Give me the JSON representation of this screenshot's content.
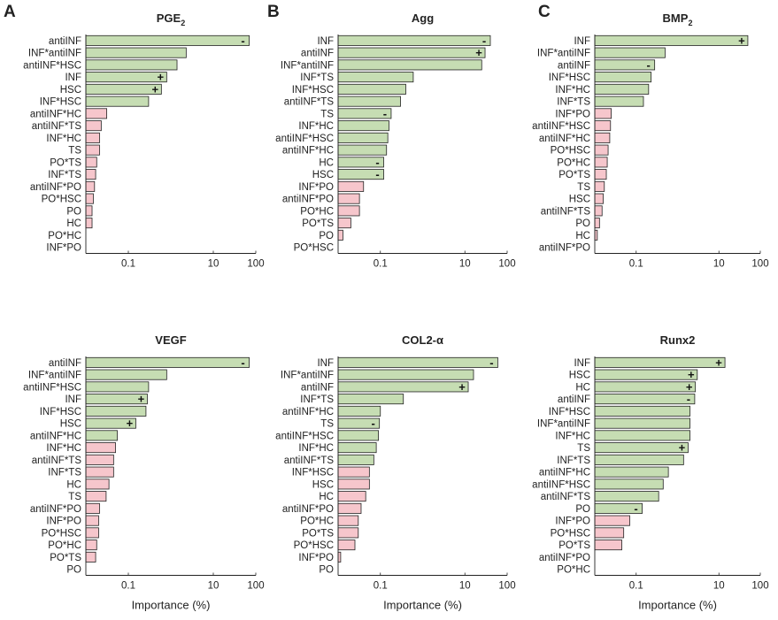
{
  "figure": {
    "panel_letters": [
      "A",
      "B",
      "C"
    ],
    "xlabel": "Importance (%)",
    "colors": {
      "positive": "#c6ddb3",
      "negative": "#f6c6cc",
      "edge": "#222222",
      "text": "#222222"
    }
  },
  "chart_data": [
    {
      "type": "bar",
      "orientation": "horizontal",
      "xscale": "log",
      "title": "PGE",
      "title_sub": "2",
      "xticks": [
        "0.1",
        "10",
        "100"
      ],
      "xlabel": "",
      "categories": [
        "antiINF",
        "INF*antiINF",
        "antiINF*HSC",
        "INF",
        "HSC",
        "INF*HSC",
        "antiINF*HC",
        "antiINF*TS",
        "INF*HC",
        "TS",
        "PO*TS",
        "INF*TS",
        "antiINF*PO",
        "PO*HSC",
        "PO",
        "HC",
        "PO*HC",
        "INF*PO"
      ],
      "values": [
        70,
        2.3,
        1.4,
        0.8,
        0.6,
        0.3,
        0.031,
        0.023,
        0.021,
        0.021,
        0.018,
        0.017,
        0.016,
        0.015,
        0.014,
        0.014,
        0.0101,
        0.01
      ],
      "effect": [
        "pos",
        "pos",
        "pos",
        "pos",
        "pos",
        "pos",
        "neg",
        "neg",
        "neg",
        "neg",
        "neg",
        "neg",
        "neg",
        "neg",
        "neg",
        "neg",
        "neg",
        "neg"
      ],
      "signs": [
        "-",
        "",
        "",
        "+",
        "+",
        "",
        "",
        "",
        "",
        "",
        "",
        "",
        "",
        "",
        "",
        "",
        "",
        ""
      ]
    },
    {
      "type": "bar",
      "orientation": "horizontal",
      "xscale": "log",
      "title": "Agg",
      "title_sub": "",
      "xticks": [
        "0.1",
        "10",
        "100"
      ],
      "xlabel": "",
      "categories": [
        "INF",
        "antiINF",
        "INF*antiINF",
        "INF*TS",
        "INF*HSC",
        "antiINF*TS",
        "TS",
        "INF*HC",
        "antiINF*HSC",
        "antiINF*HC",
        "HC",
        "HSC",
        "INF*PO",
        "antiINF*PO",
        "PO*HC",
        "PO*TS",
        "PO",
        "PO*HSC"
      ],
      "values": [
        40,
        30,
        25,
        0.6,
        0.4,
        0.3,
        0.18,
        0.16,
        0.15,
        0.14,
        0.12,
        0.12,
        0.04,
        0.032,
        0.032,
        0.02,
        0.013,
        0.01
      ],
      "effect": [
        "pos",
        "pos",
        "pos",
        "pos",
        "pos",
        "pos",
        "pos",
        "pos",
        "pos",
        "pos",
        "pos",
        "pos",
        "neg",
        "neg",
        "neg",
        "neg",
        "neg",
        "neg"
      ],
      "signs": [
        "-",
        "+",
        "",
        "",
        "",
        "",
        "-",
        "",
        "",
        "",
        "-",
        "-",
        "",
        "",
        "",
        "",
        "",
        ""
      ]
    },
    {
      "type": "bar",
      "orientation": "horizontal",
      "xscale": "log",
      "title": "BMP",
      "title_sub": "2",
      "xticks": [
        "0.1",
        "10",
        "100"
      ],
      "xlabel": "",
      "categories": [
        "INF",
        "INF*antiINF",
        "antiINF",
        "INF*HSC",
        "INF*HC",
        "INF*TS",
        "INF*PO",
        "antiINF*HSC",
        "antiINF*HC",
        "PO*HSC",
        "PO*HC",
        "PO*TS",
        "TS",
        "HSC",
        "antiINF*TS",
        "PO",
        "HC",
        "antiINF*PO"
      ],
      "values": [
        50,
        0.5,
        0.28,
        0.23,
        0.2,
        0.15,
        0.025,
        0.024,
        0.023,
        0.021,
        0.02,
        0.019,
        0.017,
        0.016,
        0.015,
        0.013,
        0.0115,
        0.01
      ],
      "effect": [
        "pos",
        "pos",
        "pos",
        "pos",
        "pos",
        "pos",
        "neg",
        "neg",
        "neg",
        "neg",
        "neg",
        "neg",
        "neg",
        "neg",
        "neg",
        "neg",
        "neg",
        "neg"
      ],
      "signs": [
        "+",
        "",
        "-",
        "",
        "",
        "",
        "",
        "",
        "",
        "",
        "",
        "",
        "",
        "",
        "",
        "",
        "",
        ""
      ]
    },
    {
      "type": "bar",
      "orientation": "horizontal",
      "xscale": "log",
      "title": "VEGF",
      "title_sub": "",
      "xticks": [
        "0.1",
        "10",
        "100"
      ],
      "xlabel": "Importance (%)",
      "categories": [
        "antiINF",
        "INF*antiINF",
        "antiINF*HSC",
        "INF",
        "INF*HSC",
        "HSC",
        "antiINF*HC",
        "INF*HC",
        "antiINF*TS",
        "INF*TS",
        "HC",
        "TS",
        "antiINF*PO",
        "INF*PO",
        "PO*HSC",
        "PO*HC",
        "PO*TS",
        "PO"
      ],
      "values": [
        70,
        0.8,
        0.3,
        0.28,
        0.26,
        0.15,
        0.055,
        0.05,
        0.045,
        0.045,
        0.035,
        0.03,
        0.021,
        0.02,
        0.02,
        0.018,
        0.017,
        0.01
      ],
      "effect": [
        "pos",
        "pos",
        "pos",
        "pos",
        "pos",
        "pos",
        "pos",
        "neg",
        "neg",
        "neg",
        "neg",
        "neg",
        "neg",
        "neg",
        "neg",
        "neg",
        "neg",
        "neg"
      ],
      "signs": [
        "-",
        "",
        "",
        "+",
        "",
        "+",
        "",
        "",
        "",
        "",
        "",
        "",
        "",
        "",
        "",
        "",
        "",
        ""
      ]
    },
    {
      "type": "bar",
      "orientation": "horizontal",
      "xscale": "log",
      "title": "COL2-α",
      "title_sub": "",
      "xticks": [
        "0.1",
        "10",
        "100"
      ],
      "xlabel": "Importance (%)",
      "categories": [
        "INF",
        "INF*antiINF",
        "antiINF",
        "INF*TS",
        "antiINF*HC",
        "TS",
        "antiINF*HSC",
        "INF*HC",
        "antiINF*TS",
        "INF*HSC",
        "HSC",
        "HC",
        "antiINF*PO",
        "PO*HC",
        "PO*TS",
        "PO*HSC",
        "INF*PO",
        "PO"
      ],
      "values": [
        60,
        16,
        12,
        0.35,
        0.1,
        0.095,
        0.09,
        0.08,
        0.07,
        0.055,
        0.055,
        0.045,
        0.035,
        0.03,
        0.03,
        0.025,
        0.0115,
        0.01
      ],
      "effect": [
        "pos",
        "pos",
        "pos",
        "pos",
        "pos",
        "pos",
        "pos",
        "pos",
        "pos",
        "neg",
        "neg",
        "neg",
        "neg",
        "neg",
        "neg",
        "neg",
        "neg",
        "neg"
      ],
      "signs": [
        "-",
        "",
        "+",
        "",
        "",
        "-",
        "",
        "",
        "",
        "",
        "",
        "",
        "",
        "",
        "",
        "",
        "",
        ""
      ]
    },
    {
      "type": "bar",
      "orientation": "horizontal",
      "xscale": "log",
      "title": "Runx2",
      "title_sub": "",
      "xticks": [
        "0.1",
        "10",
        "100"
      ],
      "xlabel": "Importance (%)",
      "categories": [
        "INF",
        "HSC",
        "HC",
        "antiINF",
        "INF*HSC",
        "INF*antiINF",
        "INF*HC",
        "TS",
        "INF*TS",
        "antiINF*HC",
        "antiINF*HSC",
        "antiINF*TS",
        "PO",
        "INF*PO",
        "PO*HSC",
        "PO*TS",
        "antiINF*PO",
        "PO*HC"
      ],
      "values": [
        14,
        3,
        2.7,
        2.6,
        2,
        2,
        2,
        1.8,
        1.4,
        0.6,
        0.45,
        0.35,
        0.14,
        0.07,
        0.05,
        0.045,
        0.01,
        0.01
      ],
      "effect": [
        "pos",
        "pos",
        "pos",
        "pos",
        "pos",
        "pos",
        "pos",
        "pos",
        "pos",
        "pos",
        "pos",
        "pos",
        "pos",
        "neg",
        "neg",
        "neg",
        "neg",
        "neg"
      ],
      "signs": [
        "+",
        "+",
        "+",
        "-",
        "",
        "",
        "",
        "+",
        "",
        "",
        "",
        "",
        "-",
        "",
        "",
        "",
        "",
        ""
      ]
    }
  ]
}
